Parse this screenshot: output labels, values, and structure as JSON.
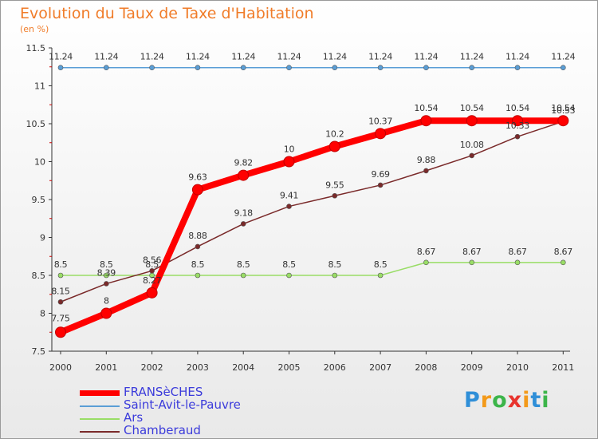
{
  "header": {
    "title": "Evolution du Taux de Taxe d'Habitation",
    "unit": "(en %)"
  },
  "logo": {
    "text": "Proxiti",
    "letter_colors": [
      "#2f8fd8",
      "#f39a1a",
      "#3cb54a",
      "#e8342e",
      "#f39a1a",
      "#2f8fd8",
      "#3cb54a"
    ]
  },
  "chart_data": {
    "type": "line",
    "title": "Evolution du Taux de Taxe d'Habitation",
    "ylabel": "(en %)",
    "xlabel": "",
    "x": [
      "2000",
      "2001",
      "2002",
      "2003",
      "2004",
      "2005",
      "2006",
      "2007",
      "2008",
      "2009",
      "2010",
      "2011"
    ],
    "ylim": [
      7.5,
      11.5
    ],
    "yticks": [
      "7.5",
      "8",
      "8.5",
      "9",
      "9.5",
      "10",
      "10.5",
      "11",
      "11.5"
    ],
    "grid": false,
    "legend_position": "bottom-left",
    "series": [
      {
        "name": "FRANSèCHES",
        "color": "#ff0000",
        "emphasis": "thick",
        "values": [
          7.75,
          8,
          8.27,
          9.63,
          9.82,
          10,
          10.2,
          10.37,
          10.54,
          10.54,
          10.54,
          10.54
        ],
        "labels": [
          "7.75",
          "8",
          "8.27",
          "9.63",
          "9.82",
          "10",
          "10.2",
          "10.37",
          "10.54",
          "10.54",
          "10.54",
          "10.54"
        ]
      },
      {
        "name": "Saint-Avit-le-Pauvre",
        "color": "#5a9ed6",
        "emphasis": "thin",
        "values": [
          11.24,
          11.24,
          11.24,
          11.24,
          11.24,
          11.24,
          11.24,
          11.24,
          11.24,
          11.24,
          11.24,
          11.24
        ],
        "labels": [
          "11.24",
          "11.24",
          "11.24",
          "11.24",
          "11.24",
          "11.24",
          "11.24",
          "11.24",
          "11.24",
          "11.24",
          "11.24",
          "11.24"
        ]
      },
      {
        "name": "Ars",
        "color": "#99dd66",
        "emphasis": "thin",
        "values": [
          8.5,
          8.5,
          8.5,
          8.5,
          8.5,
          8.5,
          8.5,
          8.5,
          8.67,
          8.67,
          8.67,
          8.67
        ],
        "labels": [
          "8.5",
          "8.5",
          "8.5",
          "8.5",
          "8.5",
          "8.5",
          "8.5",
          "8.5",
          "8.67",
          "8.67",
          "8.67",
          "8.67"
        ]
      },
      {
        "name": "Chamberaud",
        "color": "#7a2a2a",
        "emphasis": "thin",
        "values": [
          8.15,
          8.39,
          8.56,
          8.88,
          9.18,
          9.41,
          9.55,
          9.69,
          9.88,
          10.08,
          10.33,
          10.53
        ],
        "labels": [
          "8.15",
          "8.39",
          "8.56",
          "8.88",
          "9.18",
          "9.41",
          "9.55",
          "9.69",
          "9.88",
          "10.08",
          "10.33",
          "10.53"
        ]
      }
    ]
  }
}
